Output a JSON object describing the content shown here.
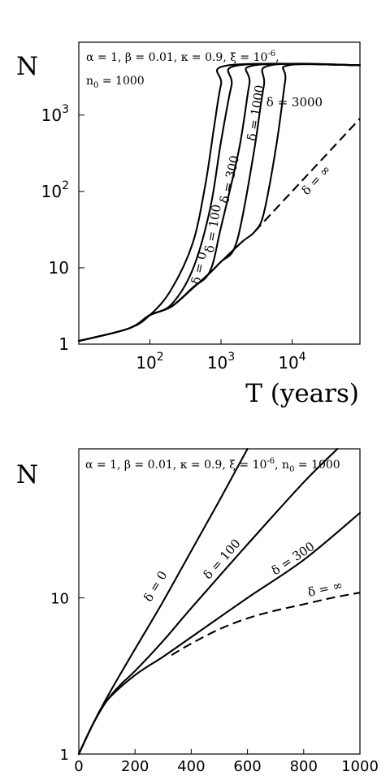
{
  "chart_data": [
    {
      "type": "line",
      "scale": {
        "x": "log",
        "y": "log"
      },
      "xlim": [
        10,
        90000
      ],
      "ylim": [
        1,
        9000
      ],
      "ylabel": "N",
      "xlabel": "T (years)",
      "params_text_line1": "α = 1, β = 0.01, κ = 0.9, ξ = 10",
      "params_xi_exp": "-6",
      "params_text_line2_prefix": "n",
      "params_n0_sub": "0",
      "params_text_line2_rest": " = 1000",
      "x_ticks": [
        {
          "value": 100,
          "base": "10",
          "exp": "2"
        },
        {
          "value": 1000,
          "base": "10",
          "exp": "3"
        },
        {
          "value": 10000,
          "base": "10",
          "exp": "4"
        }
      ],
      "y_ticks": [
        {
          "value": 1,
          "base": "1",
          "exp": ""
        },
        {
          "value": 10,
          "base": "10",
          "exp": ""
        },
        {
          "value": 100,
          "base": "10",
          "exp": "2"
        },
        {
          "value": 1000,
          "base": "10",
          "exp": "3"
        }
      ],
      "series": [
        {
          "name": "δ = 0",
          "dashed": false,
          "label_at": [
            560,
            9.7
          ],
          "points": [
            [
              10,
              1.1
            ],
            [
              50,
              1.6
            ],
            [
              100,
              2.4
            ],
            [
              200,
              5.2
            ],
            [
              400,
              21
            ],
            [
              600,
              120
            ],
            [
              800,
              700
            ],
            [
              1000,
              2500
            ],
            [
              1300,
              4500
            ],
            [
              90000,
              4500
            ]
          ]
        },
        {
          "name": "δ = 100",
          "dashed": false,
          "label_at": [
            880,
            32
          ],
          "points": [
            [
              10,
              1.1
            ],
            [
              50,
              1.6
            ],
            [
              100,
              2.4
            ],
            [
              200,
              3.3
            ],
            [
              400,
              9.5
            ],
            [
              700,
              58
            ],
            [
              1000,
              450
            ],
            [
              1400,
              2400
            ],
            [
              1800,
              4500
            ],
            [
              90000,
              4500
            ]
          ]
        },
        {
          "name": "δ = 300",
          "dashed": false,
          "label_at": [
            1500,
            140
          ],
          "points": [
            [
              10,
              1.1
            ],
            [
              50,
              1.6
            ],
            [
              100,
              2.4
            ],
            [
              200,
              3.1
            ],
            [
              400,
              5.5
            ],
            [
              700,
              9
            ],
            [
              1000,
              34
            ],
            [
              1800,
              360
            ],
            [
              2500,
              2500
            ],
            [
              3000,
              4500
            ],
            [
              90000,
              4500
            ]
          ]
        },
        {
          "name": "δ = 1000",
          "dashed": false,
          "label_at": [
            3500,
            1050
          ],
          "points": [
            [
              10,
              1.1
            ],
            [
              50,
              1.6
            ],
            [
              100,
              2.4
            ],
            [
              200,
              3.1
            ],
            [
              400,
              5.4
            ],
            [
              700,
              8.6
            ],
            [
              1000,
              12
            ],
            [
              1500,
              17
            ],
            [
              2000,
              46
            ],
            [
              3000,
              400
            ],
            [
              4000,
              2400
            ],
            [
              5000,
              4500
            ],
            [
              90000,
              4500
            ]
          ]
        },
        {
          "name": "δ = 3000",
          "dashed": false,
          "label_at": [
            10800,
            1300
          ],
          "points": [
            [
              10,
              1.1
            ],
            [
              50,
              1.6
            ],
            [
              100,
              2.4
            ],
            [
              200,
              3.1
            ],
            [
              400,
              5.4
            ],
            [
              700,
              8.6
            ],
            [
              1000,
              12
            ],
            [
              2000,
              22
            ],
            [
              3000,
              30
            ],
            [
              4000,
              52
            ],
            [
              6000,
              400
            ],
            [
              8000,
              2800
            ],
            [
              9000,
              4500
            ],
            [
              90000,
              4500
            ]
          ]
        },
        {
          "name": "δ = ∞",
          "dashed": true,
          "label_at": [
            24000,
            130
          ],
          "points": [
            [
              3000,
              30
            ],
            [
              10000,
              100
            ],
            [
              30000,
              300
            ],
            [
              90000,
              900
            ]
          ]
        }
      ]
    },
    {
      "type": "line",
      "scale": {
        "x": "linear",
        "y": "log"
      },
      "xlim": [
        0,
        1000
      ],
      "ylim": [
        1,
        90
      ],
      "ylabel": "N",
      "xlabel": "",
      "params_text_line1": "α = 1, β = 0.01, κ = 0.9, ξ = 10",
      "params_xi_exp": "-6",
      "params_text_line2_prefix": ", n",
      "params_n0_sub": "0",
      "params_text_line2_rest": " = 1000",
      "x_ticks": [
        {
          "value": 0,
          "base": "0",
          "exp": ""
        },
        {
          "value": 200,
          "base": "200",
          "exp": ""
        },
        {
          "value": 400,
          "base": "400",
          "exp": ""
        },
        {
          "value": 600,
          "base": "600",
          "exp": ""
        },
        {
          "value": 800,
          "base": "800",
          "exp": ""
        },
        {
          "value": 1000,
          "base": "1000",
          "exp": ""
        }
      ],
      "y_ticks": [
        {
          "value": 1,
          "base": "1",
          "exp": ""
        },
        {
          "value": 10,
          "base": "10",
          "exp": ""
        }
      ],
      "series": [
        {
          "name": "δ = 0",
          "dashed": false,
          "label_at": [
            285,
            11.5
          ],
          "points": [
            [
              0,
              1
            ],
            [
              50,
              1.55
            ],
            [
              100,
              2.3
            ],
            [
              150,
              3.3
            ],
            [
              200,
              4.7
            ],
            [
              300,
              9.5
            ],
            [
              400,
              20
            ],
            [
              500,
              42
            ],
            [
              600,
              90
            ]
          ]
        },
        {
          "name": "δ = 100",
          "dashed": false,
          "label_at": [
            520,
            17
          ],
          "points": [
            [
              0,
              1
            ],
            [
              50,
              1.55
            ],
            [
              100,
              2.2
            ],
            [
              150,
              2.8
            ],
            [
              200,
              3.4
            ],
            [
              300,
              5.3
            ],
            [
              400,
              8.6
            ],
            [
              600,
              22
            ],
            [
              800,
              55
            ],
            [
              920,
              90
            ]
          ]
        },
        {
          "name": "δ = 300",
          "dashed": false,
          "label_at": [
            770,
            17
          ],
          "points": [
            [
              0,
              1
            ],
            [
              50,
              1.55
            ],
            [
              100,
              2.2
            ],
            [
              200,
              3.2
            ],
            [
              300,
              4.2
            ],
            [
              400,
              5.6
            ],
            [
              600,
              10
            ],
            [
              800,
              17.5
            ],
            [
              1000,
              35
            ]
          ]
        },
        {
          "name": "δ = ∞",
          "dashed": true,
          "label_at": [
            880,
            10.8
          ],
          "points": [
            [
              330,
              4.3
            ],
            [
              400,
              5.1
            ],
            [
              500,
              6.3
            ],
            [
              600,
              7.4
            ],
            [
              700,
              8.3
            ],
            [
              800,
              9.1
            ],
            [
              900,
              10.0
            ],
            [
              1000,
              10.8
            ]
          ]
        }
      ]
    }
  ]
}
